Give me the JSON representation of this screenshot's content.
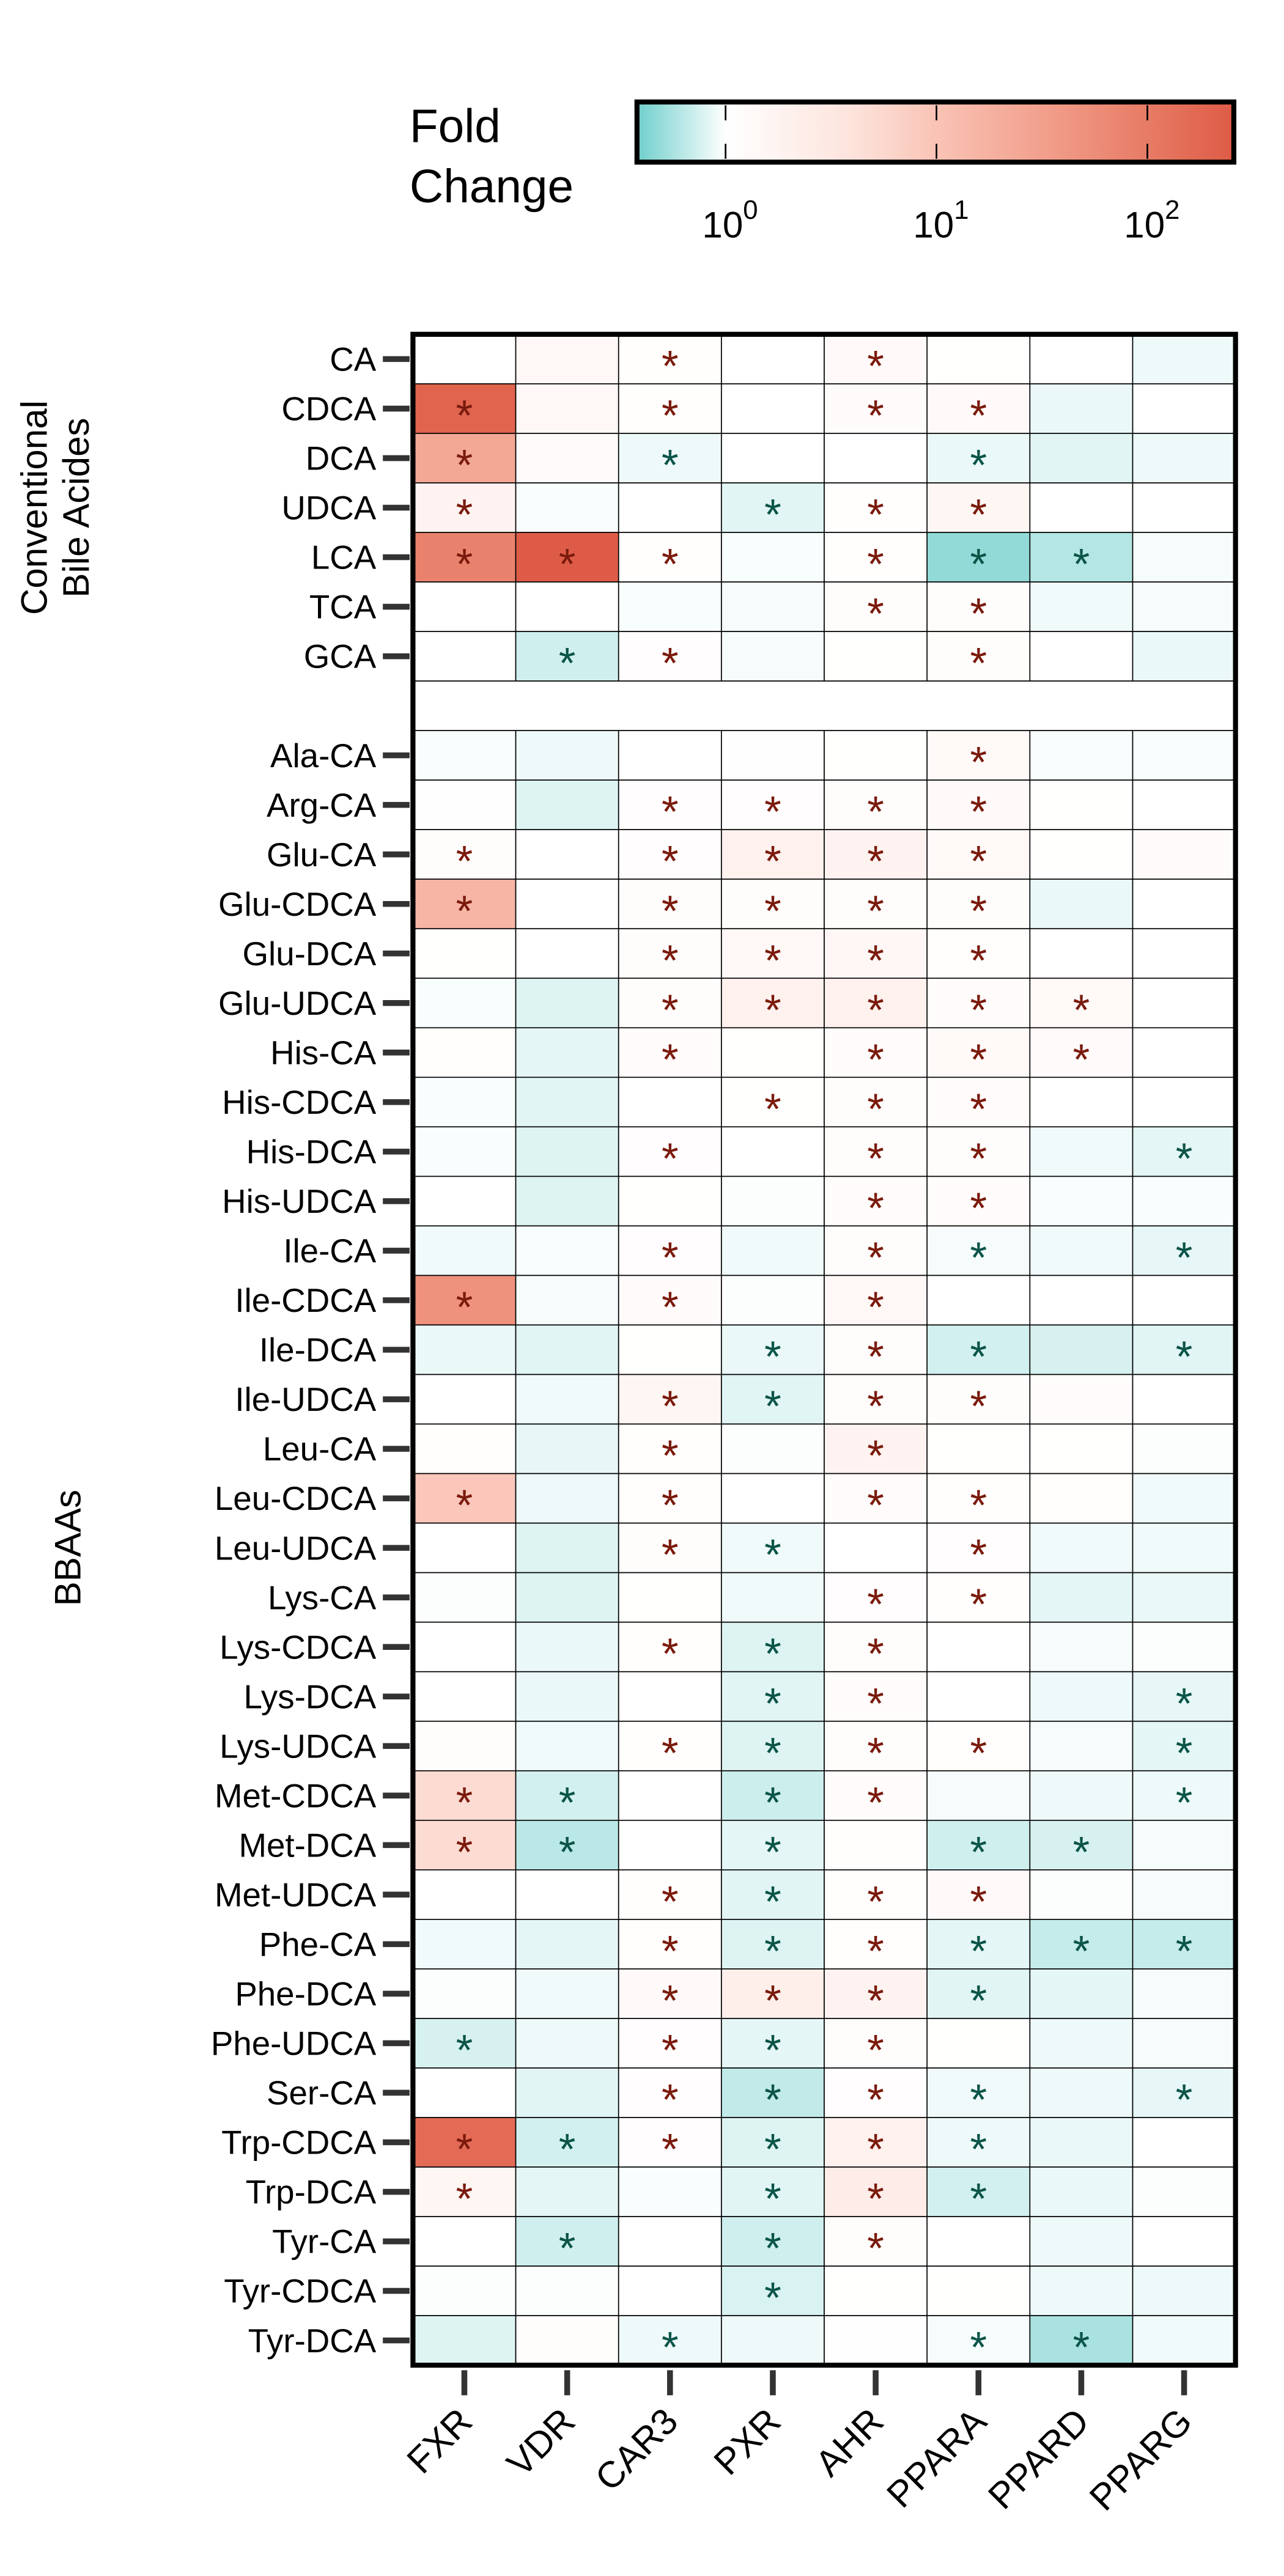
{
  "chart_data": {
    "type": "heatmap",
    "title": "",
    "legend": {
      "title_line1": "Fold",
      "title_line2": "Change",
      "scale": "log10",
      "range_log10": [
        -0.42,
        2.41
      ],
      "ticks": [
        {
          "base": "10",
          "exp": "0",
          "log10": 0
        },
        {
          "base": "10",
          "exp": "1",
          "log10": 1
        },
        {
          "base": "10",
          "exp": "2",
          "log10": 2
        }
      ],
      "placement": "top-right",
      "colors": {
        "low": "#6fcfcc",
        "mid": "#ffffff",
        "high": "#de5b46"
      }
    },
    "columns": [
      "FXR",
      "VDR",
      "CAR3",
      "PXR",
      "AHR",
      "PPARA",
      "PPARD",
      "PPARG"
    ],
    "groups": [
      {
        "label_line1": "Conventional",
        "label_line2": "Bile Acides",
        "rows": [
          "CA",
          "CDCA",
          "DCA",
          "UDCA",
          "LCA",
          "TCA",
          "GCA"
        ]
      },
      {
        "label_line1": "BBAAs",
        "label_line2": "",
        "rows": [
          "Ala-CA",
          "Arg-CA",
          "Glu-CA",
          "Glu-CDCA",
          "Glu-DCA",
          "Glu-UDCA",
          "His-CA",
          "His-CDCA",
          "His-DCA",
          "His-UDCA",
          "Ile-CA",
          "Ile-CDCA",
          "Ile-DCA",
          "Ile-UDCA",
          "Leu-CA",
          "Leu-CDCA",
          "Leu-UDCA",
          "Lys-CA",
          "Lys-CDCA",
          "Lys-DCA",
          "Lys-UDCA",
          "Met-CDCA",
          "Met-DCA",
          "Met-UDCA",
          "Phe-CA",
          "Phe-DCA",
          "Phe-UDCA",
          "Ser-CA",
          "Trp-CDCA",
          "Trp-DCA",
          "Tyr-CA",
          "Tyr-CDCA",
          "Tyr-DCA"
        ]
      }
    ],
    "value_units": "log10 fold change",
    "values": {
      "CA": [
        0,
        0.15,
        0.03,
        0,
        0.1,
        0.01,
        0,
        -0.05
      ],
      "CDCA": [
        2.3,
        0.15,
        0.03,
        0,
        0.08,
        0.1,
        -0.06,
        0
      ],
      "DCA": [
        1.4,
        0.08,
        -0.05,
        0,
        0,
        -0.06,
        -0.09,
        -0.05
      ],
      "UDCA": [
        0.25,
        -0.02,
        0,
        -0.09,
        0.03,
        0.2,
        0,
        0
      ],
      "LCA": [
        1.9,
        2.4,
        0.03,
        -0.02,
        0.03,
        -0.32,
        -0.22,
        -0.03
      ],
      "TCA": [
        0,
        0,
        -0.02,
        -0.03,
        0.05,
        0.05,
        -0.04,
        -0.03
      ],
      "GCA": [
        0,
        -0.14,
        0.04,
        -0.03,
        0.01,
        0.05,
        0,
        -0.06
      ],
      "Ala-CA": [
        -0.02,
        -0.05,
        0,
        0.02,
        0.01,
        0.12,
        -0.02,
        -0.02
      ],
      "Arg-CA": [
        0.02,
        -0.1,
        0.04,
        0.04,
        0.05,
        0.1,
        0.01,
        0
      ],
      "Glu-CA": [
        0.05,
        0,
        0.04,
        0.3,
        0.25,
        0.12,
        0.01,
        0.08
      ],
      "Glu-CDCA": [
        1.2,
        0,
        0.06,
        0.05,
        0.05,
        0.05,
        -0.06,
        0
      ],
      "Glu-DCA": [
        0.01,
        0,
        0.05,
        0.15,
        0.18,
        0.03,
        0,
        0
      ],
      "Glu-UDCA": [
        -0.02,
        -0.1,
        0.05,
        0.3,
        0.3,
        0.07,
        0.12,
        0
      ],
      "His-CA": [
        0.03,
        -0.08,
        0.07,
        0.01,
        0.07,
        0.12,
        0.08,
        0
      ],
      "His-CDCA": [
        -0.02,
        -0.09,
        0,
        0.01,
        0.05,
        0.07,
        0,
        0
      ],
      "His-DCA": [
        -0.02,
        -0.1,
        0.04,
        0,
        0.05,
        0.05,
        -0.04,
        -0.08
      ],
      "His-UDCA": [
        0,
        -0.1,
        0.01,
        -0.01,
        0.07,
        0.07,
        -0.02,
        -0.02
      ],
      "Ile-CA": [
        -0.04,
        -0.02,
        0.04,
        -0.04,
        0.05,
        -0.03,
        -0.04,
        -0.07
      ],
      "Ile-CDCA": [
        1.7,
        -0.03,
        0.08,
        -0.01,
        0.15,
        0,
        0,
        0
      ],
      "Ile-DCA": [
        -0.06,
        -0.09,
        0.01,
        -0.06,
        0.05,
        -0.13,
        -0.12,
        -0.09
      ],
      "Ile-UDCA": [
        0,
        -0.04,
        0.2,
        -0.09,
        0.05,
        0.05,
        0.07,
        0
      ],
      "Leu-CA": [
        0.03,
        -0.07,
        0.03,
        -0.01,
        0.25,
        0.01,
        0.01,
        -0.01
      ],
      "Leu-CDCA": [
        0.95,
        -0.05,
        0.03,
        0,
        0.07,
        0.03,
        0.03,
        -0.04
      ],
      "Leu-UDCA": [
        0,
        -0.1,
        0.05,
        -0.04,
        0,
        0.04,
        -0.04,
        -0.04
      ],
      "Lys-CA": [
        -0.01,
        -0.1,
        0.01,
        -0.04,
        0.04,
        0.03,
        -0.08,
        -0.06
      ],
      "Lys-CDCA": [
        0,
        -0.06,
        0.03,
        -0.1,
        0.05,
        0,
        -0.03,
        -0.01
      ],
      "Lys-DCA": [
        0,
        -0.06,
        0,
        -0.09,
        0.07,
        0,
        -0.05,
        -0.07
      ],
      "Lys-UDCA": [
        0.05,
        -0.04,
        0.03,
        -0.1,
        0.05,
        0.03,
        -0.03,
        -0.08
      ],
      "Met-CDCA": [
        0.7,
        -0.13,
        0,
        -0.15,
        0.07,
        -0.03,
        -0.05,
        -0.05
      ],
      "Met-DCA": [
        0.7,
        -0.2,
        0,
        -0.08,
        0.03,
        -0.14,
        -0.12,
        -0.03
      ],
      "Met-UDCA": [
        0,
        0,
        0.03,
        -0.09,
        0.03,
        0.1,
        -0.01,
        -0.03
      ],
      "Phe-CA": [
        -0.04,
        -0.08,
        0.03,
        -0.1,
        0.03,
        -0.08,
        -0.17,
        -0.17
      ],
      "Phe-DCA": [
        -0.01,
        -0.04,
        0.1,
        0.35,
        0.25,
        -0.09,
        -0.08,
        -0.03
      ],
      "Phe-UDCA": [
        -0.12,
        -0.05,
        0.04,
        -0.08,
        0.05,
        0.01,
        -0.05,
        -0.03
      ],
      "Ser-CA": [
        0,
        -0.09,
        0.04,
        -0.18,
        0.04,
        -0.04,
        -0.05,
        -0.07
      ],
      "Trp-CDCA": [
        2.2,
        -0.13,
        0.04,
        -0.1,
        0.3,
        -0.05,
        -0.06,
        0
      ],
      "Trp-DCA": [
        0.2,
        -0.08,
        -0.02,
        -0.09,
        0.4,
        -0.13,
        -0.06,
        -0.01
      ],
      "Tyr-CA": [
        0,
        -0.14,
        0,
        -0.14,
        0.05,
        0,
        -0.05,
        0
      ],
      "Tyr-CDCA": [
        -0.01,
        -0.01,
        0,
        -0.11,
        0.01,
        0.01,
        -0.05,
        -0.05
      ],
      "Tyr-DCA": [
        -0.1,
        0.06,
        -0.05,
        -0.05,
        0.02,
        -0.03,
        -0.25,
        -0.04
      ]
    },
    "significance_marker": "*",
    "significant": {
      "CA": [
        0,
        0,
        1,
        0,
        1,
        0,
        0,
        0
      ],
      "CDCA": [
        1,
        0,
        1,
        0,
        1,
        1,
        0,
        0
      ],
      "DCA": [
        1,
        0,
        1,
        0,
        0,
        1,
        0,
        0
      ],
      "UDCA": [
        1,
        0,
        0,
        1,
        1,
        1,
        0,
        0
      ],
      "LCA": [
        1,
        1,
        1,
        0,
        1,
        1,
        1,
        0
      ],
      "TCA": [
        0,
        0,
        0,
        0,
        1,
        1,
        0,
        0
      ],
      "GCA": [
        0,
        1,
        1,
        0,
        0,
        1,
        0,
        0
      ],
      "Ala-CA": [
        0,
        0,
        0,
        0,
        0,
        1,
        0,
        0
      ],
      "Arg-CA": [
        0,
        0,
        1,
        1,
        1,
        1,
        0,
        0
      ],
      "Glu-CA": [
        1,
        0,
        1,
        1,
        1,
        1,
        0,
        0
      ],
      "Glu-CDCA": [
        1,
        0,
        1,
        1,
        1,
        1,
        0,
        0
      ],
      "Glu-DCA": [
        0,
        0,
        1,
        1,
        1,
        1,
        0,
        0
      ],
      "Glu-UDCA": [
        0,
        0,
        1,
        1,
        1,
        1,
        1,
        0
      ],
      "His-CA": [
        0,
        0,
        1,
        0,
        1,
        1,
        1,
        0
      ],
      "His-CDCA": [
        0,
        0,
        0,
        1,
        1,
        1,
        0,
        0
      ],
      "His-DCA": [
        0,
        0,
        1,
        0,
        1,
        1,
        0,
        1
      ],
      "His-UDCA": [
        0,
        0,
        0,
        0,
        1,
        1,
        0,
        0
      ],
      "Ile-CA": [
        0,
        0,
        1,
        0,
        1,
        1,
        0,
        1
      ],
      "Ile-CDCA": [
        1,
        0,
        1,
        0,
        1,
        0,
        0,
        0
      ],
      "Ile-DCA": [
        0,
        0,
        0,
        1,
        1,
        1,
        0,
        1
      ],
      "Ile-UDCA": [
        0,
        0,
        1,
        1,
        1,
        1,
        0,
        0
      ],
      "Leu-CA": [
        0,
        0,
        1,
        0,
        1,
        0,
        0,
        0
      ],
      "Leu-CDCA": [
        1,
        0,
        1,
        0,
        1,
        1,
        0,
        0
      ],
      "Leu-UDCA": [
        0,
        0,
        1,
        1,
        0,
        1,
        0,
        0
      ],
      "Lys-CA": [
        0,
        0,
        0,
        0,
        1,
        1,
        0,
        0
      ],
      "Lys-CDCA": [
        0,
        0,
        1,
        1,
        1,
        0,
        0,
        0
      ],
      "Lys-DCA": [
        0,
        0,
        0,
        1,
        1,
        0,
        0,
        1
      ],
      "Lys-UDCA": [
        0,
        0,
        1,
        1,
        1,
        1,
        0,
        1
      ],
      "Met-CDCA": [
        1,
        1,
        0,
        1,
        1,
        0,
        0,
        1
      ],
      "Met-DCA": [
        1,
        1,
        0,
        1,
        0,
        1,
        1,
        0
      ],
      "Met-UDCA": [
        0,
        0,
        1,
        1,
        1,
        1,
        0,
        0
      ],
      "Phe-CA": [
        0,
        0,
        1,
        1,
        1,
        1,
        1,
        1
      ],
      "Phe-DCA": [
        0,
        0,
        1,
        1,
        1,
        1,
        0,
        0
      ],
      "Phe-UDCA": [
        1,
        0,
        1,
        1,
        1,
        0,
        0,
        0
      ],
      "Ser-CA": [
        0,
        0,
        1,
        1,
        1,
        1,
        0,
        1
      ],
      "Trp-CDCA": [
        1,
        1,
        1,
        1,
        1,
        1,
        0,
        0
      ],
      "Trp-DCA": [
        1,
        0,
        0,
        1,
        1,
        1,
        0,
        0
      ],
      "Tyr-CA": [
        0,
        1,
        0,
        1,
        1,
        0,
        0,
        0
      ],
      "Tyr-CDCA": [
        0,
        0,
        0,
        1,
        0,
        0,
        0,
        0
      ],
      "Tyr-DCA": [
        0,
        0,
        1,
        0,
        0,
        1,
        1,
        0
      ]
    },
    "star_colors": {
      "up": "#7a1a0c",
      "down": "#0b5448"
    }
  }
}
